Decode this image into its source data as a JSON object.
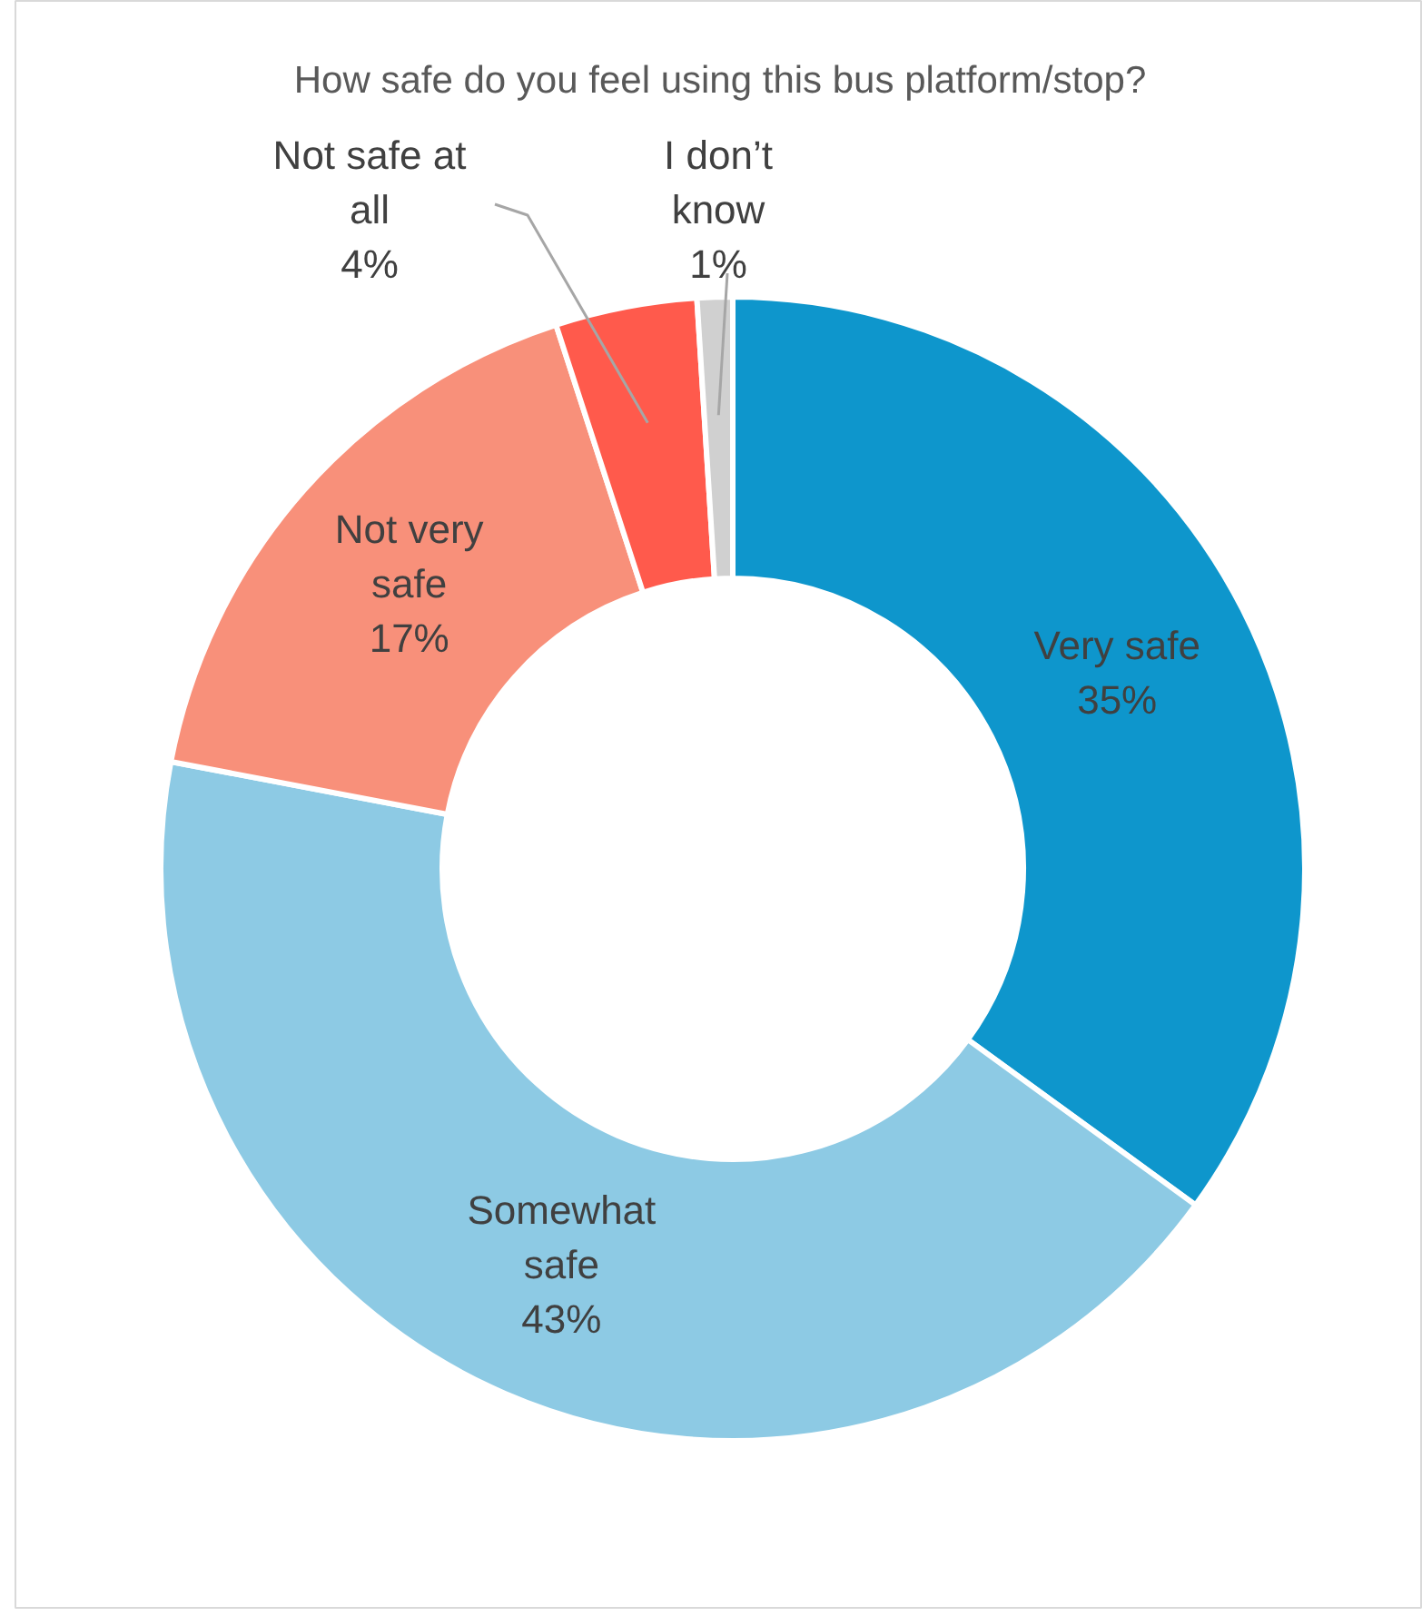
{
  "chart_data": {
    "type": "donut",
    "title": "How safe do you feel using this bus platform/stop?",
    "categories": [
      "Very safe",
      "Somewhat\nsafe",
      "Not very\nsafe",
      "Not safe at\nall",
      "I don’t\nknow"
    ],
    "values": [
      35,
      43,
      17,
      4,
      1
    ],
    "colors": [
      "#0e96cc",
      "#8dcae4",
      "#f8907a",
      "#ff5a4c",
      "#d0d0d0"
    ],
    "value_labels": [
      "35%",
      "43%",
      "17%",
      "4%",
      "1%"
    ],
    "legend": false
  }
}
